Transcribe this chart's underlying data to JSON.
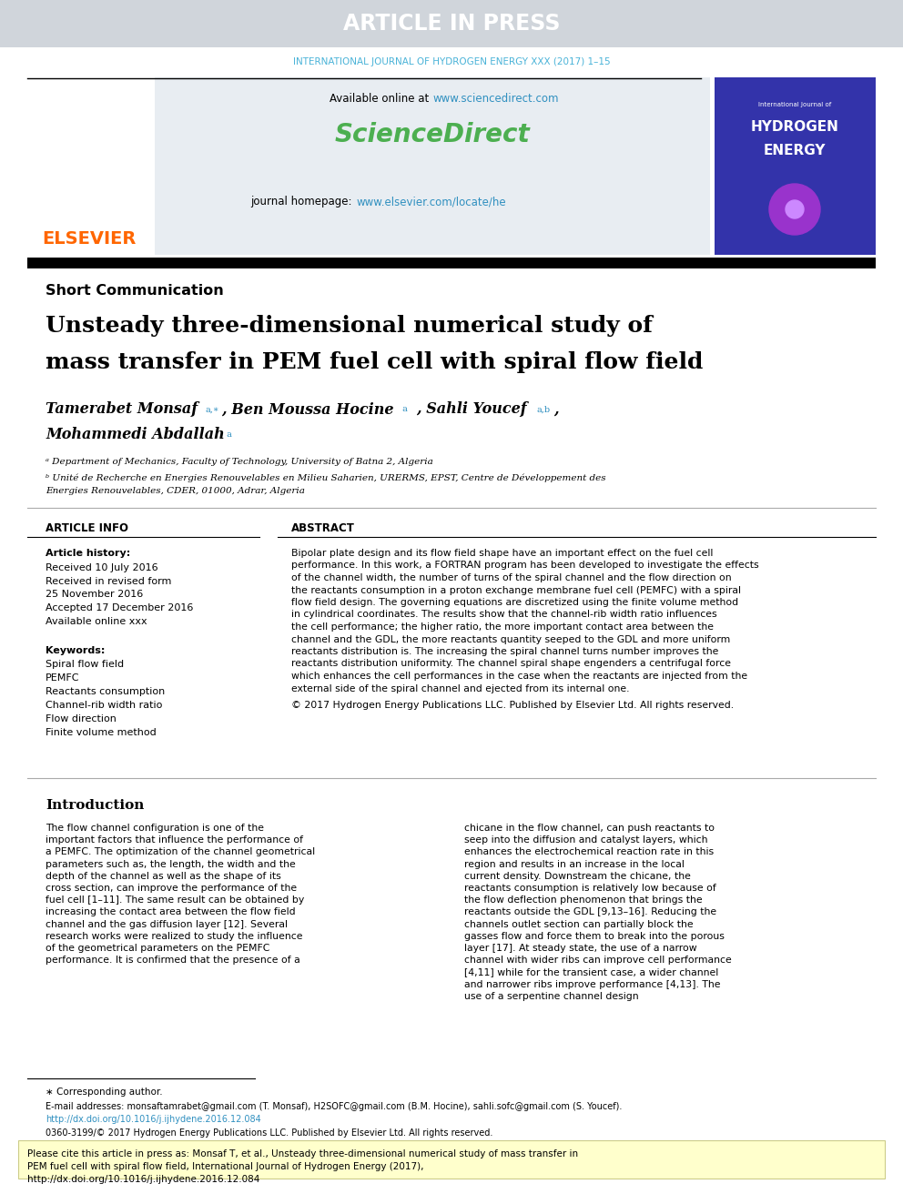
{
  "article_in_press_text": "ARTICLE IN PRESS",
  "article_in_press_bg": "#d0d5db",
  "article_in_press_color": "#ffffff",
  "journal_line": "INTERNATIONAL JOURNAL OF HYDROGEN ENERGY XXX (2017) 1–15",
  "journal_line_color": "#4ab3d8",
  "sciencedirect_url": "www.sciencedirect.com",
  "sciencedirect_url_color": "#3090c0",
  "sciencedirect_text": "ScienceDirect",
  "sciencedirect_color": "#4caf50",
  "journal_homepage_label": "journal homepage:",
  "journal_homepage_url": "www.elsevier.com/locate/he",
  "journal_homepage_url_color": "#3090c0",
  "elsevier_color": "#ff6600",
  "section_label": "Short Communication",
  "paper_title_line1": "Unsteady three-dimensional numerical study of",
  "paper_title_line2": "mass transfer in PEM fuel cell with spiral flow field",
  "authors": "Tamerabet Monsaf ᵃ,*, Ben Moussa Hocine ᵃ, Sahli Youcef ᵃ,b,",
  "authors2": "Mohammedi Abdallah ᵃ",
  "affil_a": "ᵃ Department of Mechanics, Faculty of Technology, University of Batna 2, Algeria",
  "affil_b": "ᵇ Unité de Recherche en Energies Renouvelables en Milieu Saharien, URERMS, EPST, Centre de Développement des",
  "affil_b2": "Energies Renouvelables, CDER, 01000, Adrar, Algeria",
  "article_info_title": "ARTICLE INFO",
  "abstract_title": "ABSTRACT",
  "article_history_label": "Article history:",
  "received1": "Received 10 July 2016",
  "received2": "Received in revised form",
  "received2b": "25 November 2016",
  "accepted": "Accepted 17 December 2016",
  "available": "Available online xxx",
  "keywords_label": "Keywords:",
  "keywords": [
    "Spiral flow field",
    "PEMFC",
    "Reactants consumption",
    "Channel-rib width ratio",
    "Flow direction",
    "Finite volume method"
  ],
  "abstract_text": "Bipolar plate design and its flow field shape have an important effect on the fuel cell performance. In this work, a FORTRAN program has been developed to investigate the effects of the channel width, the number of turns of the spiral channel and the flow direction on the reactants consumption in a proton exchange membrane fuel cell (PEMFC) with a spiral flow field design. The governing equations are discretized using the finite volume method in cylindrical coordinates. The results show that the channel-rib width ratio influences the cell performance; the higher ratio, the more important contact area between the channel and the GDL, the more reactants quantity seeped to the GDL and more uniform reactants distribution is. The increasing the spiral channel turns number improves the reactants distribution uniformity. The channel spiral shape engenders a centrifugal force which enhances the cell performances in the case when the reactants are injected from the external side of the spiral channel and ejected from its internal one.",
  "abstract_copyright": "© 2017 Hydrogen Energy Publications LLC. Published by Elsevier Ltd. All rights reserved.",
  "intro_title": "Introduction",
  "intro_col1": "The flow channel configuration is one of the important factors that influence the performance of a PEMFC. The optimization of the channel geometrical parameters such as, the length, the width and the depth of the channel as well as the shape of its cross section, can improve the performance of the fuel cell [1–11]. The same result can be obtained by increasing the contact area between the flow field channel and the gas diffusion layer [12]. Several research works were realized to study the influence of the geometrical parameters on the PEMFC performance. It is confirmed that the presence of a",
  "intro_col2": "chicane in the flow channel, can push reactants to seep into the diffusion and catalyst layers, which enhances the electrochemical reaction rate in this region and results in an increase in the local current density. Downstream the chicane, the reactants consumption is relatively low because of the flow deflection phenomenon that brings the reactants outside the GDL [9,13–16]. Reducing the channels outlet section can partially block the gasses flow and force them to break into the porous layer [17]. At steady state, the use of a narrow channel with wider ribs can improve cell performance [4,11] while for the transient case, a wider channel and narrower ribs improve performance [4,13]. The use of a serpentine channel design",
  "footnote_star": "∗ Corresponding author.",
  "footnote_email": "E-mail addresses: monsaftamrabet@gmail.com (T. Monsaf), H2SOFC@gmail.com (B.M. Hocine), sahli.sofc@gmail.com (S. Youcef).",
  "footnote_doi": "http://dx.doi.org/10.1016/j.ijhydene.2016.12.084",
  "footnote_issn": "0360-3199/© 2017 Hydrogen Energy Publications LLC. Published by Elsevier Ltd. All rights reserved.",
  "cite_box": "Please cite this article in press as: Monsaf T, et al., Unsteady three-dimensional numerical study of mass transfer in PEM fuel cell with spiral flow field, International Journal of Hydrogen Energy (2017), http://dx.doi.org/10.1016/j.ijhydene.2016.12.084",
  "cite_box_bg": "#ffffcc",
  "bg_color": "#ffffff",
  "text_color": "#000000",
  "link_color": "#3090c0"
}
